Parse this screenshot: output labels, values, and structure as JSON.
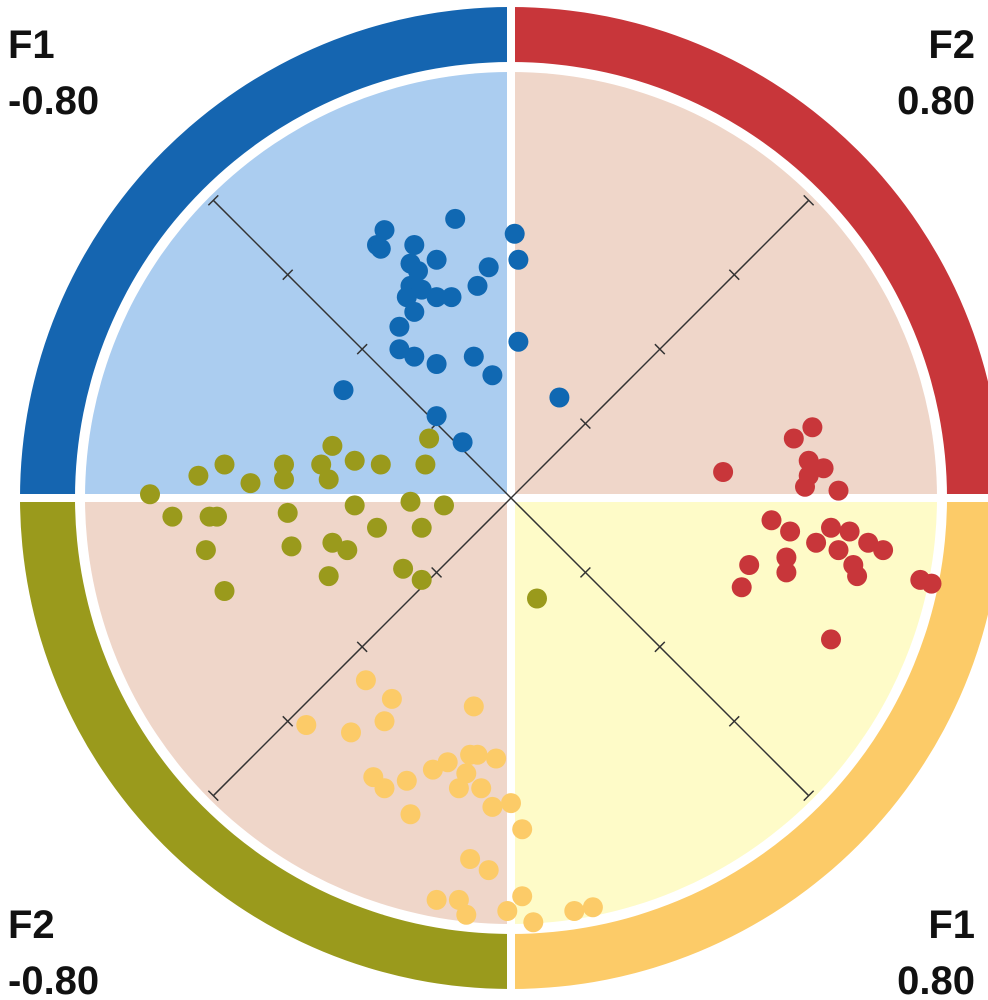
{
  "chart_data": {
    "type": "scatter",
    "title": "",
    "axes": [
      {
        "name": "F1",
        "min": -0.8,
        "max": 0.8,
        "min_label": "-0.80",
        "max_label": "0.80",
        "direction": "top-left to bottom-right"
      },
      {
        "name": "F2",
        "min": -0.8,
        "max": 0.8,
        "min_label": "-0.80",
        "max_label": "0.80",
        "direction": "bottom-left to top-right"
      }
    ],
    "corner_labels": {
      "top_left": {
        "axis": "F1",
        "value": "-0.80"
      },
      "top_right": {
        "axis": "F2",
        "value": "0.80"
      },
      "bottom_left": {
        "axis": "F2",
        "value": "-0.80"
      },
      "bottom_right": {
        "axis": "F1",
        "value": "0.80"
      }
    },
    "quadrants": [
      {
        "position": "top-left",
        "background": "#abcdf0",
        "ring_color": "#1565b0"
      },
      {
        "position": "top-right",
        "background": "#efd6c9",
        "ring_color": "#c8363a"
      },
      {
        "position": "bottom-left",
        "background": "#efd6c9",
        "ring_color": "#9a9a1c"
      },
      {
        "position": "bottom-right",
        "background": "#fefbc8",
        "ring_color": "#fccb68"
      }
    ],
    "axis_ticks": [
      -0.8,
      -0.6,
      -0.4,
      -0.2,
      0.2,
      0.4,
      0.6,
      0.8
    ],
    "grid": false,
    "series": [
      {
        "color": "#1068b2",
        "points": [
          [
            -0.53,
            0.19
          ],
          [
            -0.52,
            0.16
          ],
          [
            -0.51,
            0.16
          ],
          [
            -0.45,
            0.3
          ],
          [
            -0.47,
            0.21
          ],
          [
            -0.45,
            0.18
          ],
          [
            -0.43,
            0.18
          ],
          [
            -0.42,
            0.15
          ],
          [
            -0.41,
            0.13
          ],
          [
            -0.4,
            0.16
          ],
          [
            -0.42,
            0.22
          ],
          [
            -0.38,
            0.12
          ],
          [
            -0.38,
            0.08
          ],
          [
            -0.37,
            0.17
          ],
          [
            -0.35,
            0.19
          ],
          [
            -0.35,
            0.05
          ],
          [
            -0.34,
            0.28
          ],
          [
            -0.33,
            0.24
          ],
          [
            -0.32,
            0.06
          ],
          [
            -0.31,
            0.33
          ],
          [
            -0.28,
            0.08
          ],
          [
            -0.24,
            0.14
          ],
          [
            -0.19,
            0.14
          ],
          [
            -0.21,
            0.01
          ],
          [
            -0.37,
            -0.08
          ],
          [
            -0.2,
            0.22
          ],
          [
            -0.07,
            0.2
          ],
          [
            -0.14,
            0.01
          ],
          [
            -0.35,
            0.36
          ]
        ]
      },
      {
        "color": "#c8363a",
        "points": [
          [
            0.31,
            0.5
          ],
          [
            0.3,
            0.46
          ],
          [
            0.35,
            0.45
          ],
          [
            0.38,
            0.46
          ],
          [
            0.37,
            0.43
          ],
          [
            0.43,
            0.45
          ],
          [
            0.38,
            0.41
          ],
          [
            0.25,
            0.32
          ],
          [
            0.38,
            0.32
          ],
          [
            0.42,
            0.33
          ],
          [
            0.47,
            0.39
          ],
          [
            0.5,
            0.41
          ],
          [
            0.51,
            0.37
          ],
          [
            0.47,
            0.35
          ],
          [
            0.54,
            0.42
          ],
          [
            0.57,
            0.43
          ],
          [
            0.45,
            0.29
          ],
          [
            0.47,
            0.27
          ],
          [
            0.55,
            0.37
          ],
          [
            0.57,
            0.36
          ],
          [
            0.62,
            0.24
          ],
          [
            0.41,
            0.23
          ],
          [
            0.66,
            0.44
          ],
          [
            0.68,
            0.45
          ],
          [
            0.43,
            0.19
          ]
        ]
      },
      {
        "color": "#9a9a1c",
        "points": [
          [
            -0.49,
            -0.48
          ],
          [
            -0.43,
            -0.48
          ],
          [
            -0.38,
            -0.43
          ],
          [
            -0.37,
            -0.42
          ],
          [
            -0.45,
            -0.39
          ],
          [
            -0.43,
            -0.34
          ],
          [
            -0.34,
            -0.48
          ],
          [
            -0.37,
            -0.33
          ],
          [
            -0.26,
            -0.51
          ],
          [
            -0.33,
            -0.28
          ],
          [
            -0.28,
            -0.32
          ],
          [
            -0.27,
            -0.22
          ],
          [
            -0.3,
            -0.21
          ],
          [
            -0.23,
            -0.36
          ],
          [
            -0.2,
            -0.22
          ],
          [
            -0.31,
            -0.17
          ],
          [
            -0.35,
            -0.26
          ],
          [
            -0.26,
            -0.16
          ],
          [
            -0.18,
            -0.3
          ],
          [
            -0.14,
            -0.35
          ],
          [
            -0.15,
            -0.29
          ],
          [
            -0.22,
            -0.13
          ],
          [
            -0.14,
            -0.22
          ],
          [
            -0.13,
            -0.14
          ],
          [
            -0.16,
            -0.07
          ],
          [
            -0.19,
            -0.03
          ],
          [
            -0.05,
            -0.24
          ],
          [
            -0.01,
            -0.23
          ],
          [
            -0.08,
            -0.16
          ],
          [
            -0.08,
            -0.1
          ],
          [
            0.17,
            -0.1
          ]
        ]
      },
      {
        "color": "#fccb68",
        "points": [
          [
            0.11,
            -0.43
          ],
          [
            0.1,
            -0.53
          ],
          [
            0.03,
            -0.58
          ],
          [
            0.13,
            -0.47
          ],
          [
            0.05,
            -0.44
          ],
          [
            0.19,
            -0.56
          ],
          [
            0.22,
            -0.56
          ],
          [
            0.24,
            -0.52
          ],
          [
            0.26,
            -0.47
          ],
          [
            0.27,
            -0.44
          ],
          [
            0.29,
            -0.56
          ],
          [
            0.23,
            -0.33
          ],
          [
            0.29,
            -0.4
          ],
          [
            0.31,
            -0.43
          ],
          [
            0.32,
            -0.46
          ],
          [
            0.35,
            -0.43
          ],
          [
            0.33,
            -0.37
          ],
          [
            0.39,
            -0.44
          ],
          [
            0.41,
            -0.41
          ],
          [
            0.46,
            -0.43
          ],
          [
            0.43,
            -0.54
          ],
          [
            0.44,
            -0.64
          ],
          [
            0.47,
            -0.61
          ],
          [
            0.5,
            -0.62
          ],
          [
            0.47,
            -0.53
          ],
          [
            0.55,
            -0.52
          ],
          [
            0.55,
            -0.56
          ],
          [
            0.6,
            -0.54
          ],
          [
            0.64,
            -0.47
          ],
          [
            0.66,
            -0.44
          ],
          [
            0.66,
            -0.61
          ],
          [
            0.3,
            -0.39
          ]
        ]
      }
    ]
  }
}
